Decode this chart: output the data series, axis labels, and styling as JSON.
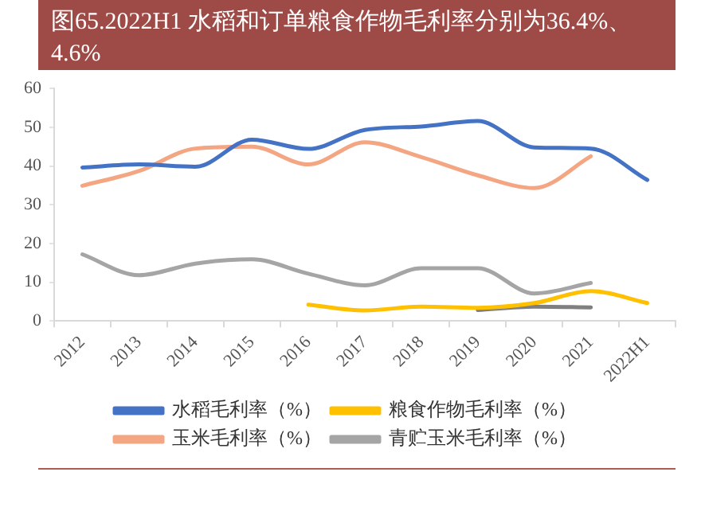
{
  "chart_data": {
    "type": "line",
    "title": "图65.2022H1 水稻和订单粮食作物毛利率分别为36.4%、4.6%",
    "categories": [
      "2012",
      "2013",
      "2014",
      "2015",
      "2016",
      "2017",
      "2018",
      "2019",
      "2020",
      "2021",
      "2022H1"
    ],
    "ylim": [
      0,
      60
    ],
    "yticks": [
      0,
      10,
      20,
      30,
      40,
      50,
      60
    ],
    "grid": false,
    "legend": "bottom",
    "marker": "none",
    "line_style": "solid",
    "series": [
      {
        "name": "水稻毛利率（%）",
        "color": "#4472c4",
        "values": [
          39.6,
          40.4,
          39.8,
          46.8,
          44.4,
          49.3,
          50.2,
          51.6,
          44.8,
          44.5,
          36.4
        ]
      },
      {
        "name": "粮食作物毛利率（%）",
        "color": "#ffc000",
        "values": [
          null,
          null,
          null,
          null,
          4.2,
          2.7,
          3.7,
          3.4,
          4.6,
          7.7,
          4.6
        ]
      },
      {
        "name": "玉米毛利率（%）",
        "color": "#f4a582",
        "values": [
          34.9,
          38.7,
          44.5,
          45.0,
          40.4,
          46.1,
          42.3,
          37.6,
          34.3,
          42.5,
          null
        ]
      },
      {
        "name": "青贮玉米毛利率（%）",
        "color": "#a5a5a5",
        "values": [
          17.2,
          11.8,
          14.8,
          15.9,
          12.2,
          9.2,
          13.6,
          13.6,
          7.1,
          9.8,
          null
        ]
      },
      {
        "color": "#7f7f7f",
        "values": [
          null,
          null,
          null,
          null,
          null,
          null,
          null,
          2.8,
          3.7,
          3.5,
          null
        ]
      }
    ]
  }
}
